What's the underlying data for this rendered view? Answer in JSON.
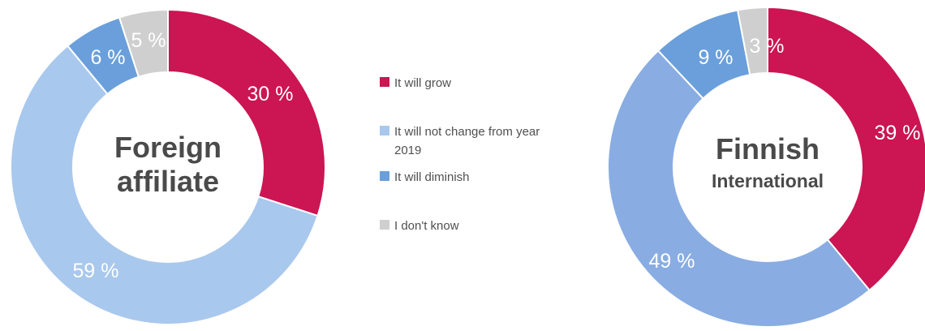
{
  "chart_data": {
    "type": "pie",
    "legend": {
      "placement": "center",
      "entries": [
        {
          "label": "It will grow",
          "color": "#cc1553"
        },
        {
          "label": "It will not change from year 2019",
          "color": "#a9c8ed"
        },
        {
          "label": "It will diminish",
          "color": "#6a9fdb"
        },
        {
          "label": "I don't know",
          "color": "#cfcfcf"
        }
      ]
    },
    "charts": [
      {
        "center_title_line1": "Foreign",
        "center_title_line2": "affiliate",
        "values": [
          30,
          59,
          6,
          5
        ],
        "labels": [
          "30 %",
          "59 %",
          "6 %",
          "5 %"
        ],
        "colors": [
          "#cc1553",
          "#a9c8ed",
          "#6a9fdb",
          "#cfcfcf"
        ]
      },
      {
        "center_title_line1": "Finnish",
        "center_title_line2": "International",
        "values": [
          39,
          49,
          9,
          3
        ],
        "labels": [
          "39 %",
          "49 %",
          "9 %",
          "3 %"
        ],
        "colors": [
          "#cc1553",
          "#89ade2",
          "#6a9fdb",
          "#cfcfcf"
        ]
      }
    ]
  }
}
